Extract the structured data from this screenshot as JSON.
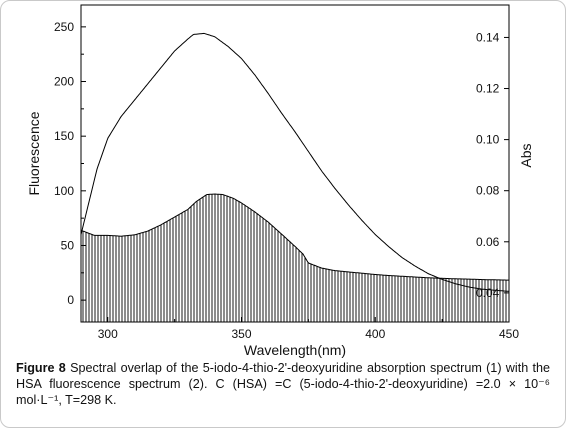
{
  "figure": {
    "caption_label": "Figure 8",
    "caption_text": "Spectral overlap of the 5-iodo-4-thio-2'-deoxyuridine absorption spectrum (1) with the HSA fluorescence spectrum (2). C (HSA) =C (5-iodo-4-thio-2'-deoxyuridine) =2.0 × 10⁻⁶ mol·L⁻¹, T=298 K."
  },
  "chart_data": {
    "type": "line",
    "title": "",
    "xlabel": "Wavelength(nm)",
    "ylabel_left": "Fluorescence",
    "ylabel_right": "Abs",
    "xlim": [
      290,
      450
    ],
    "ylim_left": [
      -20,
      270
    ],
    "ylim_right": [
      0.0286,
      0.1527
    ],
    "x_ticks": [
      300,
      350,
      400,
      450
    ],
    "y_left_ticks": [
      0,
      50,
      100,
      150,
      200,
      250
    ],
    "y_right_ticks": [
      "0.04",
      "0.06",
      "0.08",
      "0.10",
      "0.12",
      "0.14"
    ],
    "y_right_tick_values": [
      0.04,
      0.06,
      0.08,
      0.1,
      0.12,
      0.14
    ],
    "grid": false,
    "series": [
      {
        "style": "line",
        "axis": "left",
        "color": "#000000",
        "points": [
          [
            290,
            60
          ],
          [
            293,
            90
          ],
          [
            296,
            120
          ],
          [
            300,
            148
          ],
          [
            305,
            168
          ],
          [
            310,
            183
          ],
          [
            315,
            198
          ],
          [
            320,
            213
          ],
          [
            325,
            228
          ],
          [
            330,
            239
          ],
          [
            332,
            243
          ],
          [
            336,
            244
          ],
          [
            340,
            241
          ],
          [
            345,
            232
          ],
          [
            350,
            221
          ],
          [
            355,
            206
          ],
          [
            360,
            189
          ],
          [
            365,
            171
          ],
          [
            370,
            154
          ],
          [
            375,
            136
          ],
          [
            380,
            118
          ],
          [
            385,
            102
          ],
          [
            390,
            87
          ],
          [
            395,
            73
          ],
          [
            400,
            60
          ],
          [
            405,
            49
          ],
          [
            410,
            39
          ],
          [
            415,
            31
          ],
          [
            420,
            24
          ],
          [
            425,
            19
          ],
          [
            430,
            15
          ],
          [
            435,
            12
          ],
          [
            440,
            10
          ],
          [
            445,
            9
          ],
          [
            450,
            8
          ]
        ]
      },
      {
        "style": "hatched",
        "axis": "right",
        "color": "#000000",
        "points": [
          [
            290,
            0.0645
          ],
          [
            295,
            0.0625
          ],
          [
            300,
            0.0625
          ],
          [
            305,
            0.0622
          ],
          [
            310,
            0.0627
          ],
          [
            315,
            0.0642
          ],
          [
            320,
            0.0667
          ],
          [
            325,
            0.0697
          ],
          [
            330,
            0.0727
          ],
          [
            333,
            0.0757
          ],
          [
            337,
            0.0785
          ],
          [
            340,
            0.0787
          ],
          [
            343,
            0.0785
          ],
          [
            347,
            0.077
          ],
          [
            350,
            0.0752
          ],
          [
            355,
            0.0717
          ],
          [
            360,
            0.0677
          ],
          [
            365,
            0.063
          ],
          [
            370,
            0.0582
          ],
          [
            373,
            0.0552
          ],
          [
            375,
            0.0517
          ],
          [
            380,
            0.0497
          ],
          [
            385,
            0.0487
          ],
          [
            390,
            0.0482
          ],
          [
            395,
            0.0477
          ],
          [
            400,
            0.0472
          ],
          [
            405,
            0.0468
          ],
          [
            410,
            0.0465
          ],
          [
            415,
            0.0462
          ],
          [
            420,
            0.0459
          ],
          [
            425,
            0.0457
          ],
          [
            430,
            0.0455
          ],
          [
            435,
            0.0454
          ],
          [
            440,
            0.0452
          ],
          [
            445,
            0.0451
          ],
          [
            450,
            0.045
          ]
        ]
      }
    ]
  }
}
